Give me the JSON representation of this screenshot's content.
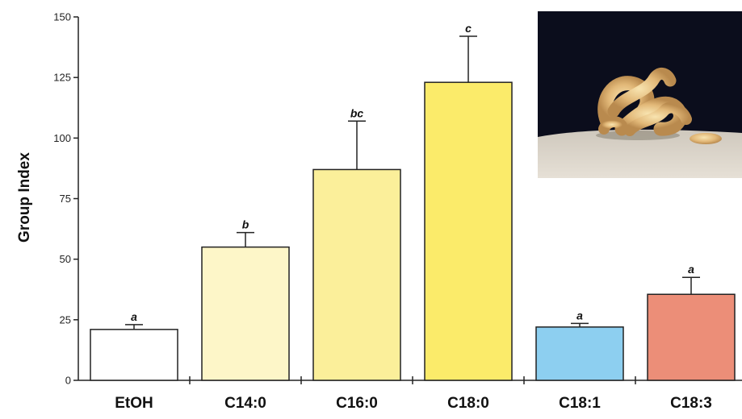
{
  "chart_data": {
    "type": "bar",
    "title": "",
    "xlabel": "",
    "ylabel": "Group Index",
    "ylim": [
      0,
      150
    ],
    "yticks": [
      0,
      25,
      50,
      75,
      100,
      125,
      150
    ],
    "grid": false,
    "categories": [
      "EtOH",
      "C14:0",
      "C16:0",
      "C18:0",
      "C18:1",
      "C18:3"
    ],
    "values": [
      21,
      55,
      87,
      123,
      22,
      35.5
    ],
    "errors": [
      2,
      6,
      20,
      19,
      1.5,
      7
    ],
    "significance": [
      "a",
      "b",
      "bc",
      "c",
      "a",
      "a"
    ],
    "colors": [
      "#ffffff",
      "#fdf6c8",
      "#fbef9a",
      "#fbeb6a",
      "#8dcff0",
      "#ec8e78"
    ],
    "inset_photo": "larvae-cluster-photo"
  }
}
